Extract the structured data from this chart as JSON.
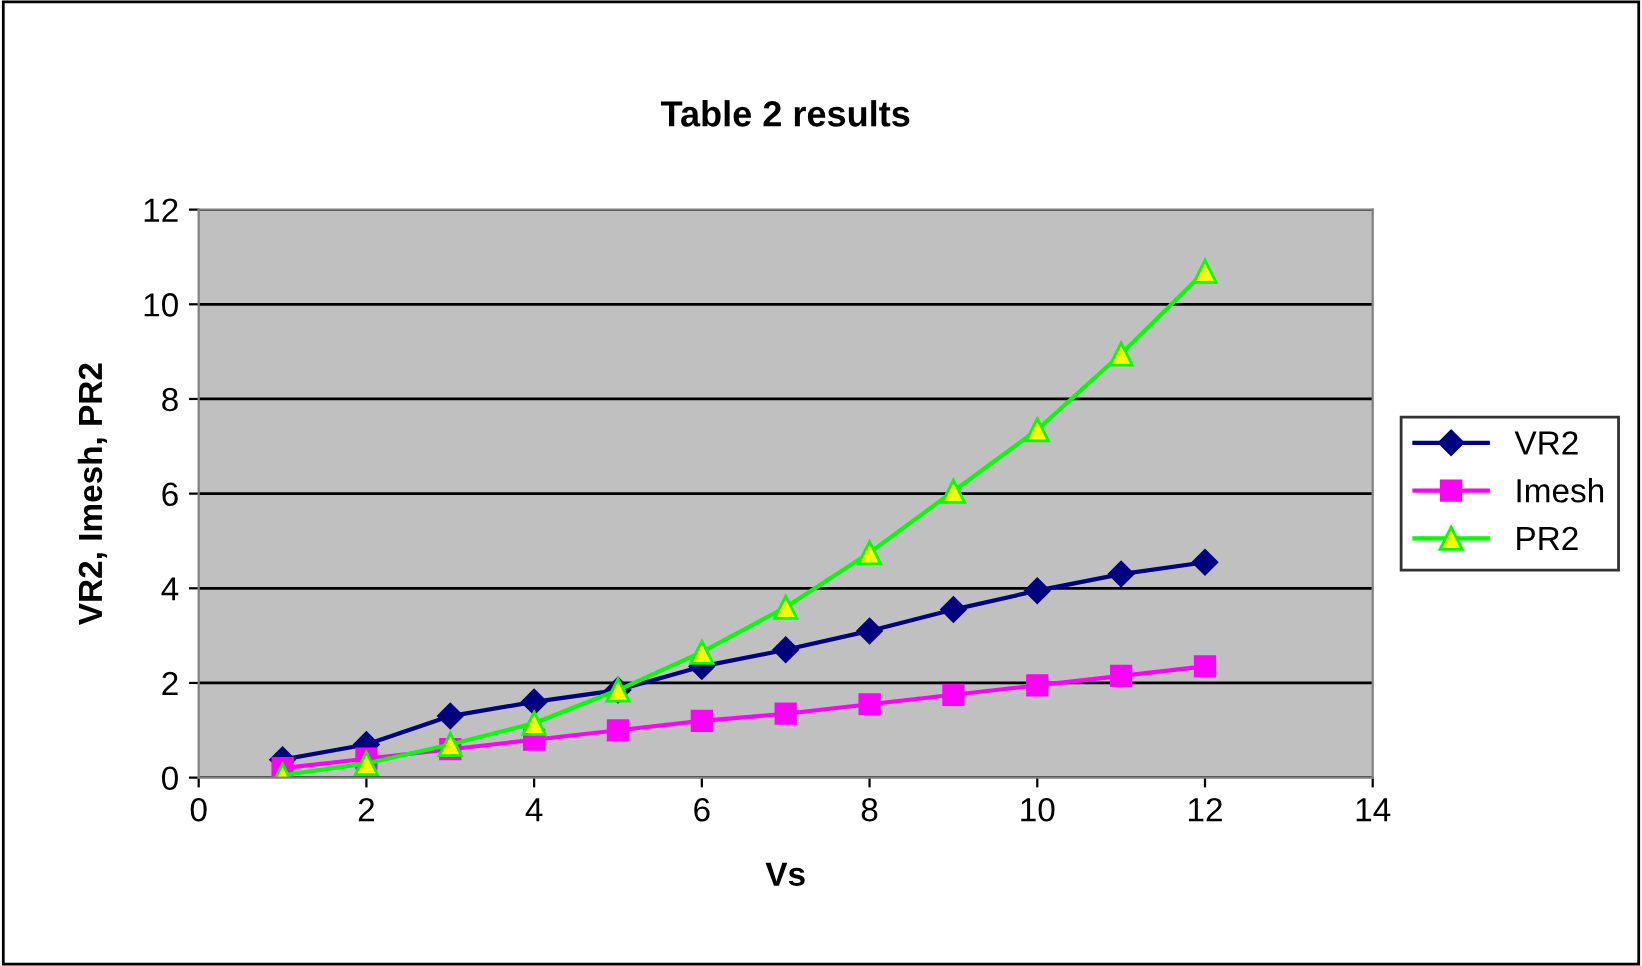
{
  "chart_data": {
    "type": "line",
    "title": "Table 2 results",
    "xlabel": "Vs",
    "ylabel": "VR2, Imesh, PR2",
    "x": [
      1,
      2,
      3,
      4,
      5,
      6,
      7,
      8,
      9,
      10,
      11,
      12
    ],
    "xlim": [
      0,
      14
    ],
    "xticks": [
      0,
      2,
      4,
      6,
      8,
      10,
      12,
      14
    ],
    "ylim": [
      0,
      12
    ],
    "yticks": [
      0,
      2,
      4,
      6,
      8,
      10,
      12
    ],
    "grid": "y",
    "legend": "right",
    "series": [
      {
        "name": "VR2",
        "color": "#000080",
        "marker": "diamond",
        "values": [
          0.38,
          0.7,
          1.3,
          1.6,
          1.85,
          2.35,
          2.7,
          3.1,
          3.55,
          3.95,
          4.3,
          4.55
        ]
      },
      {
        "name": "Imesh",
        "color": "#ff00ff",
        "marker": "square",
        "values": [
          0.2,
          0.4,
          0.6,
          0.8,
          1.0,
          1.2,
          1.35,
          1.55,
          1.75,
          1.95,
          2.15,
          2.35
        ]
      },
      {
        "name": "PR2",
        "color": "#00ff00",
        "marker": "triangle",
        "values": [
          0.05,
          0.3,
          0.7,
          1.15,
          1.85,
          2.65,
          3.6,
          4.75,
          6.05,
          7.35,
          8.95,
          10.7
        ]
      }
    ]
  }
}
